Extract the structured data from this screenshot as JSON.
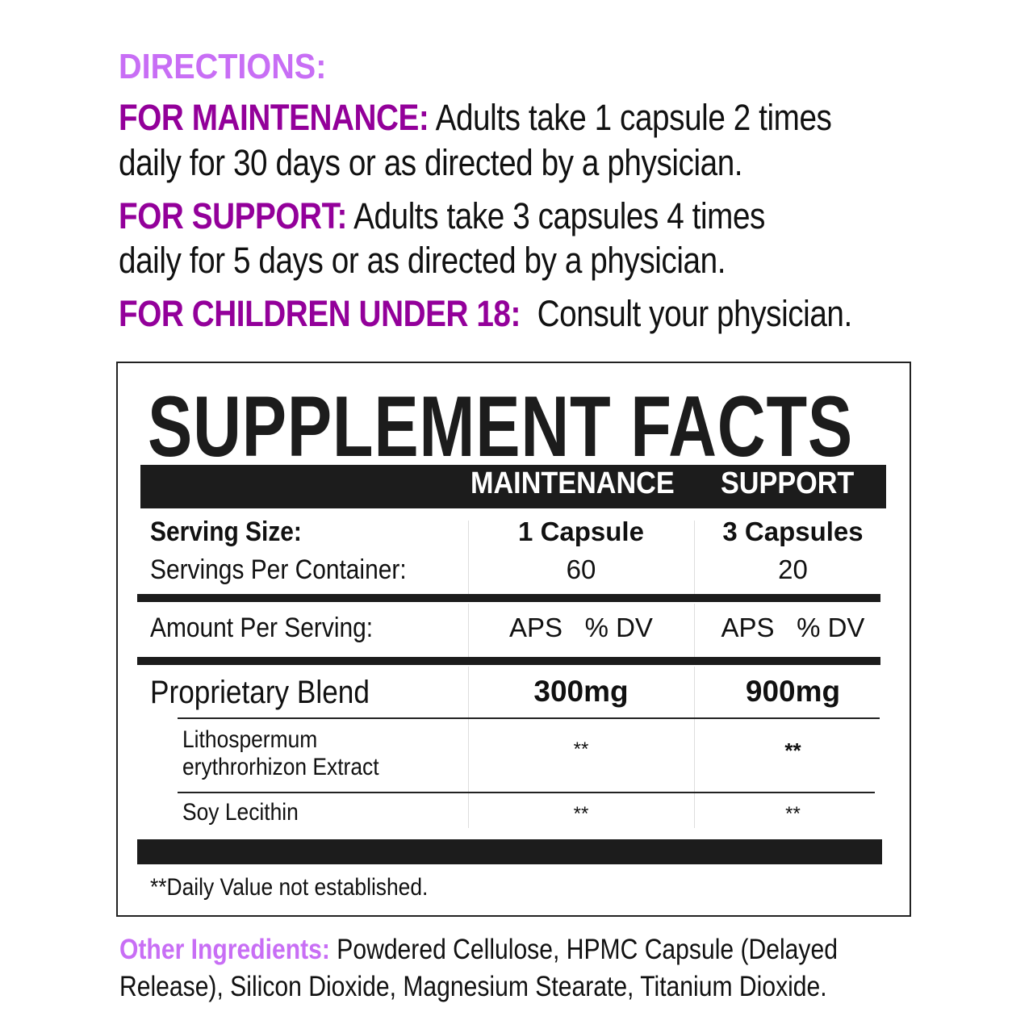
{
  "directions": {
    "title": "DIRECTIONS:",
    "maintenance": {
      "label": "FOR MAINTENANCE:",
      "line1": " Adults take 1 capsule 2 times",
      "line2": "daily for 30 days or as directed by a physician."
    },
    "support": {
      "label": "FOR SUPPORT:",
      "line1": " Adults take 3 capsules 4 times",
      "line2": "daily for 5 days or as directed by a physician."
    },
    "children": {
      "label": "FOR CHILDREN UNDER 18:",
      "text": "  Consult your physician."
    }
  },
  "facts": {
    "title": "SUPPLEMENT FACTS",
    "columns": [
      "MAINTENANCE",
      "SUPPORT"
    ],
    "serving_size_label": "Serving Size:",
    "serving_size": [
      "1 Capsule",
      "3 Capsules"
    ],
    "servings_label": "Servings Per Container:",
    "servings": [
      "60",
      "20"
    ],
    "amount_label": "Amount Per Serving:",
    "amount_headers": [
      "APS",
      "% DV"
    ],
    "blend": {
      "name": "Proprietary Blend",
      "values": [
        "300mg",
        "900mg"
      ]
    },
    "ingredients": [
      {
        "name_line1": "Lithospermum",
        "name_line2": "erythrorhizon Extract",
        "values": [
          "**",
          "**"
        ]
      },
      {
        "name_line1": "Soy Lecithin",
        "values": [
          "**",
          "**"
        ]
      }
    ],
    "footnote": "**Daily Value not established."
  },
  "other_ingredients": {
    "label": "Other Ingredients:",
    "line1": " Powdered Cellulose, HPMC Capsule (Delayed",
    "line2": "Release), Silicon Dioxide, Magnesium Stearate, Titanium Dioxide."
  },
  "colors": {
    "light_purple": "#C86EF5",
    "dark_purple": "#93009A",
    "black": "#1c1c1c"
  }
}
